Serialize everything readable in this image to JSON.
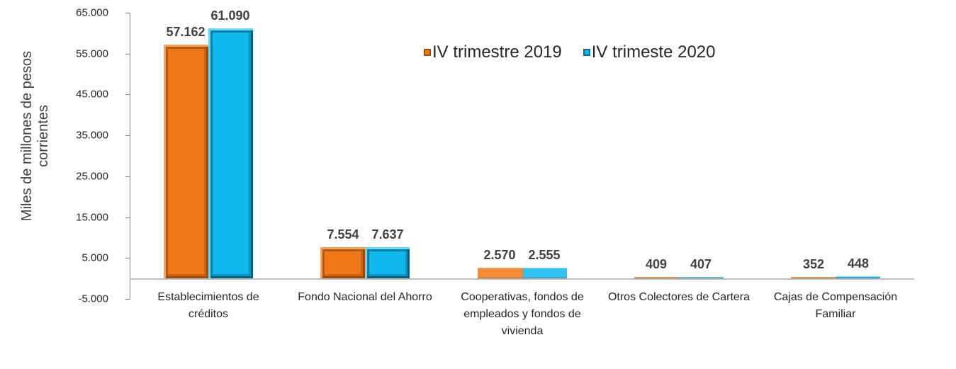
{
  "chart_data": {
    "type": "bar",
    "title": "",
    "xlabel": "",
    "ylabel": "Miles de millones de pesos corrientes",
    "ylabel_lines": [
      "Miles de millones de pesos",
      "corrientes"
    ],
    "ylim": [
      -5000,
      65000
    ],
    "yticks": [
      -5000,
      5000,
      15000,
      25000,
      35000,
      45000,
      55000,
      65000
    ],
    "ytick_labels": [
      "-5.000",
      "5.000",
      "15.000",
      "25.000",
      "35.000",
      "45.000",
      "55.000",
      "65.000"
    ],
    "grid": false,
    "legend_position": "top-right",
    "categories": [
      "Establecimientos de créditos",
      "Fondo Nacional del Ahorro",
      "Cooperativas, fondos de empleados y fondos de vivienda",
      "Otros Colectores de Cartera",
      "Cajas de Compensación Familiar"
    ],
    "category_lines": [
      [
        "Establecimientos de",
        "créditos"
      ],
      [
        "Fondo Nacional del Ahorro"
      ],
      [
        "Cooperativas, fondos de",
        "empleados y fondos de",
        "vivienda"
      ],
      [
        "Otros Colectores de Cartera"
      ],
      [
        "Cajas de Compensación",
        "Familiar"
      ]
    ],
    "series": [
      {
        "name": "IV trimestre 2019",
        "color": "#F07818",
        "values": [
          57162,
          7554,
          2570,
          409,
          352
        ],
        "labels": [
          "57.162",
          "7.554",
          "2.570",
          "409",
          "352"
        ]
      },
      {
        "name": "IV trimeste 2020",
        "color": "#10B8F0",
        "values": [
          61090,
          7637,
          2555,
          407,
          448
        ],
        "labels": [
          "61.090",
          "7.637",
          "2.555",
          "407",
          "448"
        ]
      }
    ]
  }
}
